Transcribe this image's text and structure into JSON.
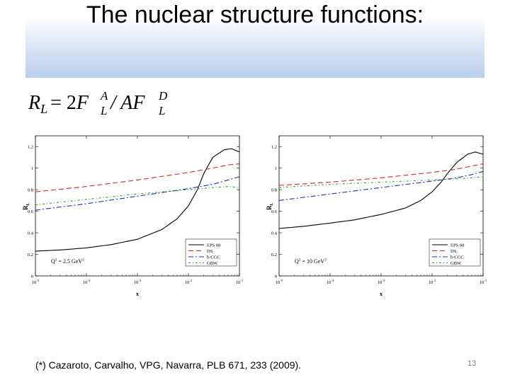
{
  "slide": {
    "title": "The nuclear structure functions:",
    "reference": "(*) Cazaroto, Carvalho, VPG, Navarra, PLB 671, 233 (2009).",
    "slide_number": "13",
    "formula": {
      "lhs": "R",
      "lhs_sub": "L",
      "eq": "= 2",
      "f": "F",
      "f1_sup": "A",
      "f1_sub": "L",
      "mid": "/ A",
      "f2_sup": "D",
      "f2_sub": "L"
    }
  },
  "colors": {
    "eps08": "#000000",
    "ds": "#d62728",
    "bcgc": "#1f2fb8",
    "gbw": "#2ca02c",
    "title_band": "#b9cdee"
  },
  "chart_data": [
    {
      "type": "line",
      "xscale": "log",
      "xlim": [
        1e-05,
        0.1
      ],
      "ylim": [
        0,
        1.3
      ],
      "xlabel": "x",
      "ylabel": "R",
      "ylabel_sub": "L",
      "xtick_base": "10",
      "xtick_exps": [
        "-5",
        "-4",
        "-3",
        "-2",
        "-1"
      ],
      "xtick_values": [
        1e-05,
        0.0001,
        0.001,
        0.01,
        0.1
      ],
      "ytick_values": [
        0,
        0.2,
        0.4,
        0.6,
        0.8,
        1,
        1.2
      ],
      "ytick_labels": [
        "0",
        "0.2",
        "0.4",
        "0.6",
        "0.8",
        "1",
        "1.2"
      ],
      "annotation": "Q",
      "annotation_sup": "2",
      "annotation_rest": " = 2.5 GeV",
      "annotation_sup2": "2",
      "legend": [
        "EPS 08",
        "DS",
        "b-CGC",
        "GBW"
      ],
      "series": [
        {
          "name": "EPS 08",
          "style": "solid",
          "color_key": "eps08",
          "x": [
            1e-05,
            3e-05,
            0.0001,
            0.0003,
            0.001,
            0.003,
            0.006,
            0.01,
            0.015,
            0.02,
            0.03,
            0.05,
            0.07,
            0.1
          ],
          "y": [
            0.23,
            0.24,
            0.26,
            0.29,
            0.34,
            0.43,
            0.53,
            0.65,
            0.8,
            0.95,
            1.1,
            1.17,
            1.18,
            1.15
          ]
        },
        {
          "name": "DS",
          "style": "dash",
          "color_key": "ds",
          "x": [
            1e-05,
            0.0001,
            0.001,
            0.01,
            0.03,
            0.06,
            0.1
          ],
          "y": [
            0.78,
            0.83,
            0.89,
            0.96,
            1.0,
            1.03,
            1.04
          ]
        },
        {
          "name": "b-CGC",
          "style": "dashdot",
          "color_key": "bcgc",
          "x": [
            1e-05,
            0.0001,
            0.001,
            0.01,
            0.03,
            0.06,
            0.1
          ],
          "y": [
            0.61,
            0.67,
            0.74,
            0.81,
            0.85,
            0.89,
            0.92
          ]
        },
        {
          "name": "GBW",
          "style": "dotdash",
          "color_key": "gbw",
          "x": [
            1e-05,
            0.0001,
            0.001,
            0.01,
            0.03,
            0.06,
            0.1
          ],
          "y": [
            0.66,
            0.71,
            0.76,
            0.8,
            0.82,
            0.83,
            0.82
          ]
        }
      ]
    },
    {
      "type": "line",
      "xscale": "log",
      "xlim": [
        1e-05,
        0.1
      ],
      "ylim": [
        0,
        1.3
      ],
      "xlabel": "x",
      "ylabel": "R",
      "ylabel_sub": "L",
      "xtick_base": "10",
      "xtick_exps": [
        "-5",
        "-4",
        "-3",
        "-2",
        "-1"
      ],
      "xtick_values": [
        1e-05,
        0.0001,
        0.001,
        0.01,
        0.1
      ],
      "ytick_values": [
        0,
        0.2,
        0.4,
        0.6,
        0.8,
        1,
        1.2
      ],
      "ytick_labels": [
        "0",
        "0.2",
        "0.4",
        "0.6",
        "0.8",
        "1",
        "1.2"
      ],
      "annotation": "Q",
      "annotation_sup": "2",
      "annotation_rest": " = 10 GeV",
      "annotation_sup2": "2",
      "legend": [
        "EPS 08",
        "DS",
        "b-CGC",
        "GBW"
      ],
      "series": [
        {
          "name": "EPS 08",
          "style": "solid",
          "color_key": "eps08",
          "x": [
            1e-05,
            3e-05,
            0.0001,
            0.0003,
            0.001,
            0.003,
            0.006,
            0.01,
            0.015,
            0.02,
            0.03,
            0.05,
            0.07,
            0.1
          ],
          "y": [
            0.44,
            0.46,
            0.49,
            0.52,
            0.57,
            0.63,
            0.7,
            0.78,
            0.87,
            0.95,
            1.05,
            1.13,
            1.15,
            1.13
          ]
        },
        {
          "name": "DS",
          "style": "dash",
          "color_key": "ds",
          "x": [
            1e-05,
            0.0001,
            0.001,
            0.01,
            0.03,
            0.06,
            0.1
          ],
          "y": [
            0.84,
            0.87,
            0.91,
            0.96,
            0.99,
            1.02,
            1.04
          ]
        },
        {
          "name": "b-CGC",
          "style": "dashdot",
          "color_key": "bcgc",
          "x": [
            1e-05,
            0.0001,
            0.001,
            0.01,
            0.03,
            0.06,
            0.1
          ],
          "y": [
            0.7,
            0.76,
            0.82,
            0.88,
            0.91,
            0.94,
            0.97
          ]
        },
        {
          "name": "GBW",
          "style": "dotdash",
          "color_key": "gbw",
          "x": [
            1e-05,
            0.0001,
            0.001,
            0.01,
            0.03,
            0.06,
            0.1
          ],
          "y": [
            0.82,
            0.85,
            0.87,
            0.89,
            0.9,
            0.91,
            0.92
          ]
        }
      ]
    }
  ]
}
